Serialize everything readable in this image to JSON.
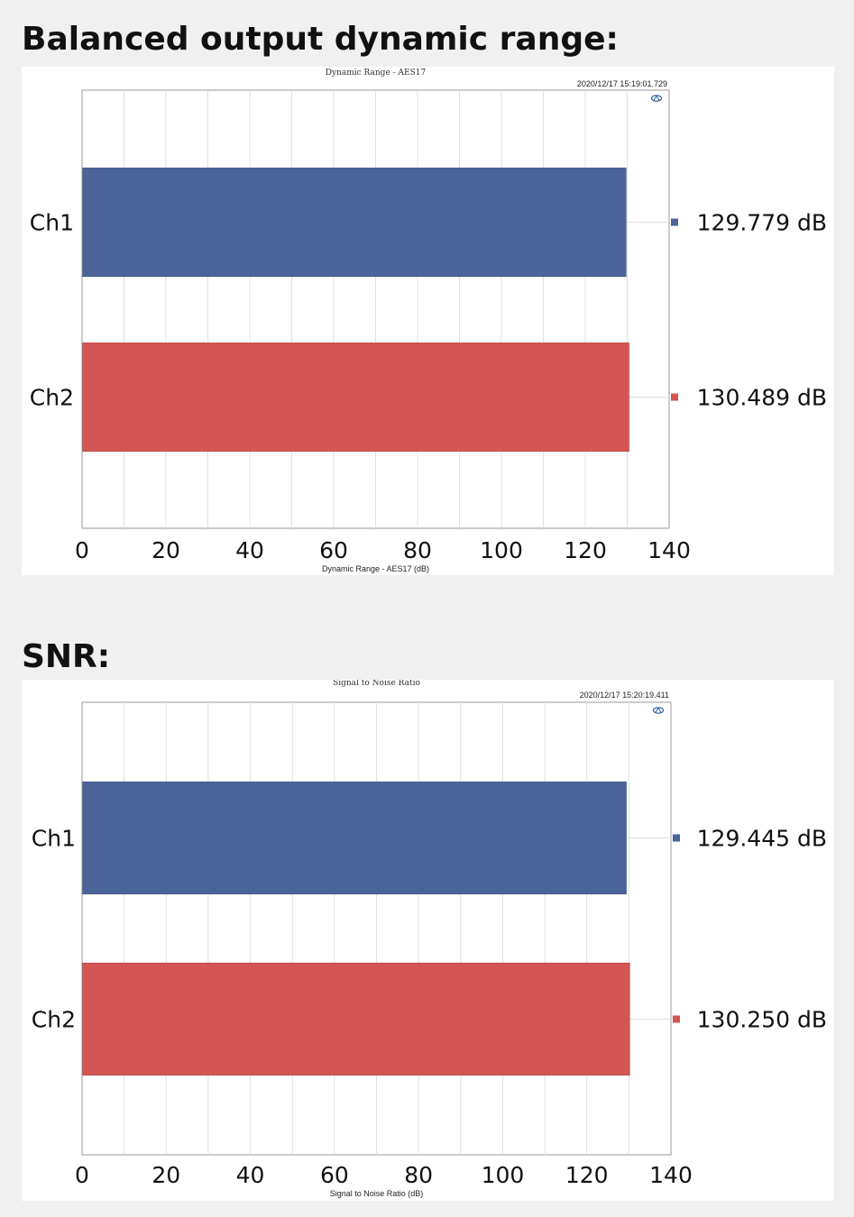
{
  "page": {
    "heading1": "Balanced output dynamic range:",
    "heading2": "SNR:"
  },
  "icons": {
    "logo": "ap-logo-icon"
  },
  "colors": {
    "ch1": "#4a6399",
    "ch2": "#d35654",
    "grid": "#e0e0e0",
    "axis": "#9a9a9a"
  },
  "chart_data": [
    {
      "type": "bar",
      "orientation": "horizontal",
      "title": "Dynamic Range - AES17",
      "timestamp": "2020/12/17 15:19:01.729",
      "xlabel": "Dynamic Range - AES17 (dB)",
      "categories": [
        "Ch1",
        "Ch2"
      ],
      "values": [
        129.779,
        130.489
      ],
      "value_labels": [
        "129.779 dB",
        "130.489 dB"
      ],
      "xlim": [
        0,
        140
      ],
      "xticks": [
        0,
        20,
        40,
        60,
        80,
        100,
        120,
        140
      ],
      "grid": true,
      "legend": "right"
    },
    {
      "type": "bar",
      "orientation": "horizontal",
      "title": "Signal to Noise Ratio",
      "timestamp": "2020/12/17 15:20:19.411",
      "xlabel": "Signal to Noise Ratio (dB)",
      "categories": [
        "Ch1",
        "Ch2"
      ],
      "values": [
        129.445,
        130.25
      ],
      "value_labels": [
        "129.445 dB",
        "130.250 dB"
      ],
      "xlim": [
        0,
        140
      ],
      "xticks": [
        0,
        20,
        40,
        60,
        80,
        100,
        120,
        140
      ],
      "grid": true,
      "legend": "right"
    }
  ]
}
